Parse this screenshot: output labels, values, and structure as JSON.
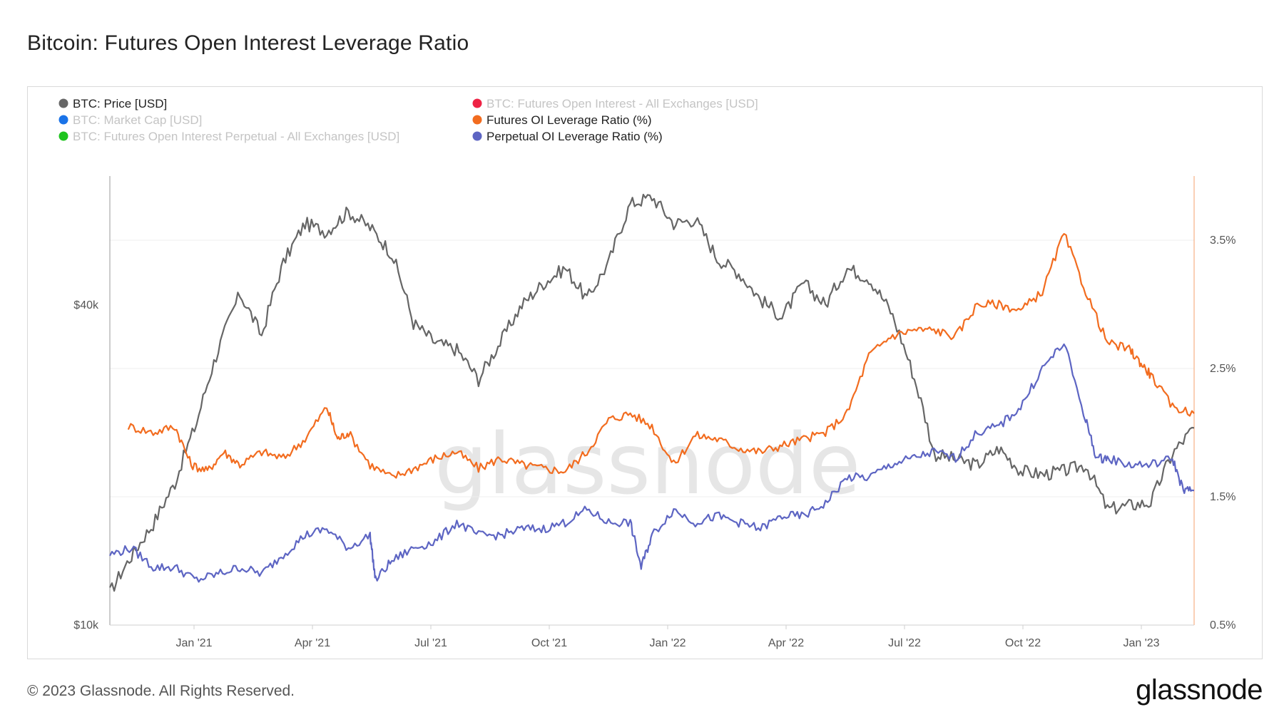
{
  "page": {
    "title": "Bitcoin: Futures Open Interest Leverage Ratio",
    "copyright": "© 2023 Glassnode. All Rights Reserved.",
    "logo": "glassnode",
    "watermark": "glassnode"
  },
  "chart_data": {
    "type": "line",
    "title": "Bitcoin: Futures Open Interest Leverage Ratio",
    "x_ticks": [
      "Jan '21",
      "Apr '21",
      "Jul '21",
      "Oct '21",
      "Jan '22",
      "Apr '22",
      "Jul '22",
      "Oct '22",
      "Jan '23"
    ],
    "x_range": [
      "2020-10-15",
      "2023-01-24"
    ],
    "y_left": {
      "scale": "log",
      "range": [
        10000,
        70000
      ],
      "ticks": [
        "$10k",
        "$40k"
      ],
      "tick_values": [
        10000,
        40000
      ]
    },
    "y_right": {
      "scale": "linear",
      "range": [
        0.5,
        4.0
      ],
      "ticks": [
        "0.5%",
        "1.5%",
        "2.5%",
        "3.5%"
      ],
      "tick_values": [
        0.5,
        1.5,
        2.5,
        3.5
      ]
    },
    "legend": [
      {
        "label": "BTC: Price [USD]",
        "color": "#666666",
        "active": true
      },
      {
        "label": "BTC: Futures Open Interest - All Exchanges [USD]",
        "color": "#ee2244",
        "active": false
      },
      {
        "label": "BTC: Market Cap [USD]",
        "color": "#1a73e8",
        "active": false
      },
      {
        "label": "Futures OI Leverage Ratio (%)",
        "color": "#f26c1f",
        "active": true
      },
      {
        "label": "BTC: Futures Open Interest Perpetual - All Exchanges [USD]",
        "color": "#1ec41e",
        "active": false
      },
      {
        "label": "Perpetual OI Leverage Ratio (%)",
        "color": "#5d65c3",
        "active": true
      }
    ],
    "series": [
      {
        "name": "BTC: Price [USD]",
        "axis": "left",
        "color": "#666666",
        "x": [
          0,
          0.02,
          0.04,
          0.06,
          0.08,
          0.1,
          0.12,
          0.14,
          0.16,
          0.18,
          0.2,
          0.22,
          0.24,
          0.26,
          0.28,
          0.3,
          0.32,
          0.34,
          0.36,
          0.38,
          0.4,
          0.42,
          0.44,
          0.46,
          0.48,
          0.5,
          0.52,
          0.54,
          0.56,
          0.58,
          0.6,
          0.62,
          0.64,
          0.66,
          0.68,
          0.7,
          0.72,
          0.74,
          0.76,
          0.78,
          0.8,
          0.82,
          0.84,
          0.86,
          0.88,
          0.9,
          0.92,
          0.94,
          0.96,
          0.98,
          1.0
        ],
        "values": [
          11500,
          13500,
          15500,
          18500,
          24000,
          33000,
          42000,
          35000,
          48000,
          57000,
          55000,
          60000,
          56000,
          50000,
          37000,
          34000,
          33000,
          29000,
          34000,
          40000,
          44000,
          47000,
          41000,
          48000,
          62000,
          64000,
          57000,
          58000,
          49000,
          46000,
          41000,
          38000,
          44000,
          40000,
          47000,
          45000,
          39000,
          30000,
          21000,
          20500,
          20000,
          21500,
          19500,
          19200,
          19500,
          20000,
          16500,
          16800,
          17000,
          21000,
          23500
        ]
      },
      {
        "name": "Futures OI Leverage Ratio (%)",
        "axis": "right",
        "color": "#f26c1f",
        "x": [
          0.017,
          0.04,
          0.06,
          0.075,
          0.09,
          0.105,
          0.12,
          0.14,
          0.16,
          0.18,
          0.2,
          0.21,
          0.22,
          0.24,
          0.26,
          0.28,
          0.3,
          0.32,
          0.34,
          0.36,
          0.38,
          0.4,
          0.42,
          0.44,
          0.46,
          0.48,
          0.5,
          0.52,
          0.54,
          0.56,
          0.58,
          0.6,
          0.62,
          0.64,
          0.66,
          0.68,
          0.7,
          0.72,
          0.74,
          0.76,
          0.78,
          0.8,
          0.82,
          0.84,
          0.86,
          0.88,
          0.9,
          0.92,
          0.94,
          0.95,
          0.96,
          0.98,
          1.0
        ],
        "values": [
          2.05,
          2.0,
          2.05,
          1.75,
          1.7,
          1.85,
          1.75,
          1.85,
          1.8,
          1.95,
          2.2,
          1.95,
          2.0,
          1.75,
          1.65,
          1.72,
          1.8,
          1.85,
          1.72,
          1.8,
          1.75,
          1.72,
          1.7,
          1.85,
          2.1,
          2.15,
          2.05,
          1.75,
          1.98,
          1.95,
          1.88,
          1.85,
          1.9,
          1.95,
          2.0,
          2.15,
          2.6,
          2.75,
          2.8,
          2.8,
          2.75,
          3.0,
          3.0,
          2.95,
          3.1,
          3.55,
          3.1,
          2.7,
          2.65,
          2.55,
          2.45,
          2.2,
          2.15
        ]
      },
      {
        "name": "Perpetual OI Leverage Ratio (%)",
        "axis": "right",
        "color": "#5d65c3",
        "x": [
          0,
          0.02,
          0.04,
          0.06,
          0.08,
          0.1,
          0.12,
          0.14,
          0.16,
          0.18,
          0.2,
          0.22,
          0.24,
          0.245,
          0.26,
          0.28,
          0.3,
          0.32,
          0.34,
          0.36,
          0.38,
          0.4,
          0.42,
          0.44,
          0.46,
          0.48,
          0.49,
          0.5,
          0.52,
          0.54,
          0.56,
          0.58,
          0.6,
          0.62,
          0.64,
          0.66,
          0.68,
          0.7,
          0.72,
          0.74,
          0.76,
          0.78,
          0.8,
          0.82,
          0.84,
          0.86,
          0.88,
          0.9,
          0.91,
          0.92,
          0.94,
          0.96,
          0.98,
          0.99,
          1.0
        ],
        "values": [
          1.05,
          1.1,
          0.95,
          0.95,
          0.85,
          0.9,
          0.95,
          0.9,
          1.05,
          1.2,
          1.25,
          1.1,
          1.2,
          0.85,
          1.0,
          1.1,
          1.15,
          1.3,
          1.2,
          1.2,
          1.25,
          1.25,
          1.3,
          1.4,
          1.3,
          1.3,
          0.95,
          1.2,
          1.4,
          1.3,
          1.35,
          1.3,
          1.25,
          1.35,
          1.35,
          1.45,
          1.65,
          1.65,
          1.75,
          1.8,
          1.85,
          1.8,
          2.0,
          2.05,
          2.2,
          2.5,
          2.7,
          2.1,
          1.8,
          1.8,
          1.75,
          1.75,
          1.8,
          1.55,
          1.55
        ]
      }
    ]
  }
}
